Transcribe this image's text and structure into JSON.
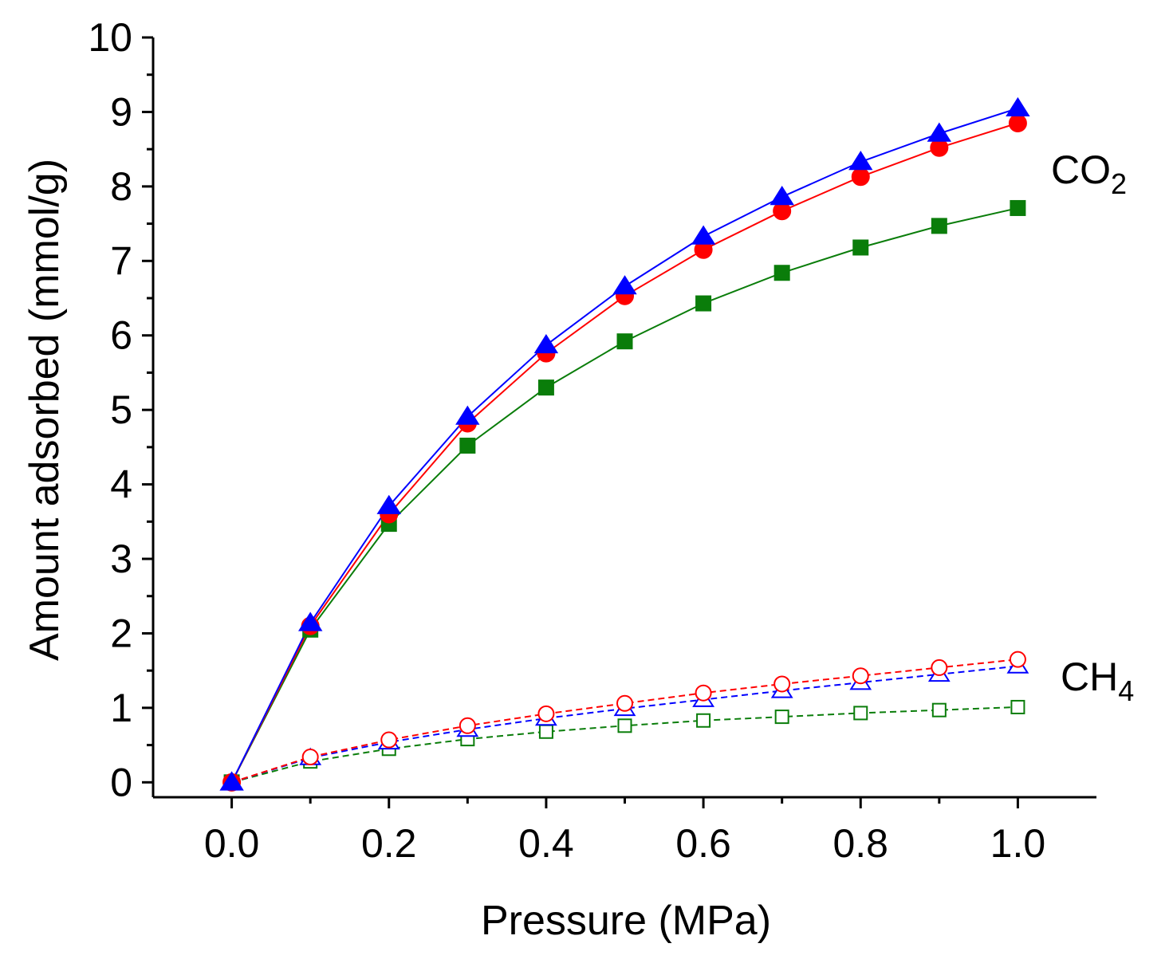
{
  "chart_data": {
    "type": "line",
    "title": "",
    "xlabel": "Pressure (MPa)",
    "ylabel": "Amount adsorbed (mmol/g)",
    "xlim": [
      -0.1,
      1.1
    ],
    "ylim": [
      -0.2,
      10
    ],
    "xticks": [
      0.0,
      0.2,
      0.4,
      0.6,
      0.8,
      1.0
    ],
    "xtick_labels": [
      "0.0",
      "0.2",
      "0.4",
      "0.6",
      "0.8",
      "1.0"
    ],
    "yticks": [
      0,
      1,
      2,
      3,
      4,
      5,
      6,
      7,
      8,
      9,
      10
    ],
    "ytick_labels": [
      "0",
      "1",
      "2",
      "3",
      "4",
      "5",
      "6",
      "7",
      "8",
      "9",
      "10"
    ],
    "grid": false,
    "x": [
      0.0,
      0.1,
      0.2,
      0.3,
      0.4,
      0.5,
      0.6,
      0.7,
      0.8,
      0.9,
      1.0
    ],
    "annotations": [
      {
        "gas": "CO",
        "subscript": "2"
      },
      {
        "gas": "CH",
        "subscript": "4"
      }
    ],
    "series": [
      {
        "name": "CO2 green",
        "gas": "CO2",
        "color": "#0a7d0a",
        "marker": "square",
        "filled": true,
        "dashed": false,
        "values": [
          0.0,
          2.05,
          3.47,
          4.52,
          5.3,
          5.92,
          6.43,
          6.84,
          7.18,
          7.47,
          7.71
        ]
      },
      {
        "name": "CO2 red",
        "gas": "CO2",
        "color": "#ff0000",
        "marker": "circle",
        "filled": true,
        "dashed": false,
        "values": [
          0.0,
          2.1,
          3.6,
          4.82,
          5.76,
          6.53,
          7.15,
          7.67,
          8.13,
          8.52,
          8.85
        ]
      },
      {
        "name": "CO2 blue",
        "gas": "CO2",
        "color": "#0000ff",
        "marker": "triangle",
        "filled": true,
        "dashed": false,
        "values": [
          0.0,
          2.14,
          3.71,
          4.91,
          5.87,
          6.66,
          7.33,
          7.86,
          8.33,
          8.71,
          9.05
        ]
      },
      {
        "name": "CH4 green",
        "gas": "CH4",
        "color": "#0a7d0a",
        "marker": "square",
        "filled": false,
        "dashed": true,
        "values": [
          0.0,
          0.28,
          0.45,
          0.58,
          0.68,
          0.76,
          0.83,
          0.88,
          0.93,
          0.97,
          1.01
        ]
      },
      {
        "name": "CH4 blue",
        "gas": "CH4",
        "color": "#0000ff",
        "marker": "triangle",
        "filled": false,
        "dashed": true,
        "values": [
          0.0,
          0.33,
          0.54,
          0.71,
          0.86,
          0.99,
          1.11,
          1.23,
          1.34,
          1.45,
          1.56
        ]
      },
      {
        "name": "CH4 red",
        "gas": "CH4",
        "color": "#ff0000",
        "marker": "circle",
        "filled": false,
        "dashed": true,
        "values": [
          0.0,
          0.34,
          0.57,
          0.76,
          0.92,
          1.06,
          1.2,
          1.32,
          1.43,
          1.54,
          1.65
        ]
      }
    ]
  }
}
